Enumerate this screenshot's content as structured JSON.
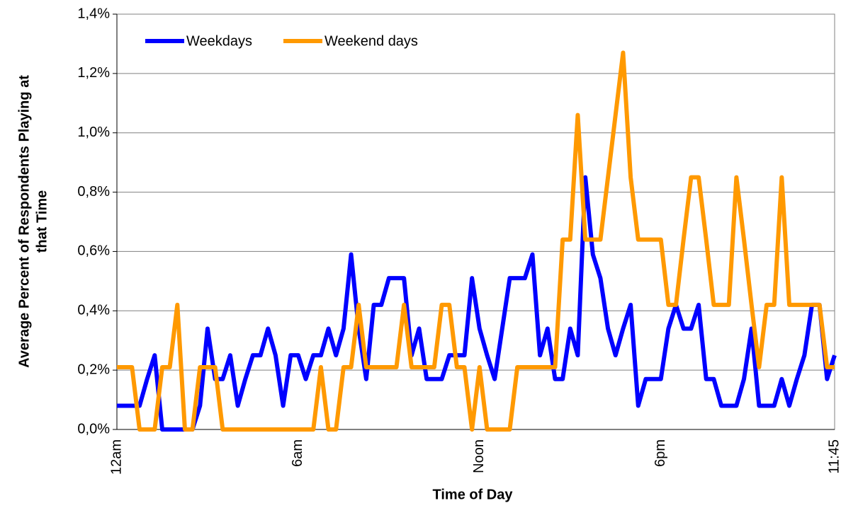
{
  "chart_data": {
    "type": "line",
    "xlabel": "Time of Day",
    "ylabel": [
      "Average Percent of Respondents Playing at",
      "that Time"
    ],
    "categories": [
      "12am",
      null,
      null,
      null,
      null,
      null,
      null,
      null,
      null,
      null,
      null,
      null,
      null,
      null,
      null,
      null,
      null,
      null,
      null,
      null,
      null,
      null,
      null,
      null,
      "6am",
      null,
      null,
      null,
      null,
      null,
      null,
      null,
      null,
      null,
      null,
      null,
      null,
      null,
      null,
      null,
      null,
      null,
      null,
      null,
      null,
      null,
      null,
      null,
      "Noon",
      null,
      null,
      null,
      null,
      null,
      null,
      null,
      null,
      null,
      null,
      null,
      null,
      null,
      null,
      null,
      null,
      null,
      null,
      null,
      null,
      null,
      null,
      null,
      "6pm",
      null,
      null,
      null,
      null,
      null,
      null,
      null,
      null,
      null,
      null,
      null,
      null,
      null,
      null,
      null,
      null,
      null,
      null,
      null,
      null,
      null,
      null,
      "11:45"
    ],
    "series": [
      {
        "name": "Weekdays",
        "color": "#0000ff",
        "values": [
          0.08,
          0.08,
          0.08,
          0.08,
          0.17,
          0.25,
          0,
          0,
          0,
          0,
          0,
          0.08,
          0.34,
          0.17,
          0.17,
          0.25,
          0.08,
          0.17,
          0.25,
          0.25,
          0.34,
          0.25,
          0.08,
          0.25,
          0.25,
          0.17,
          0.25,
          0.25,
          0.34,
          0.25,
          0.34,
          0.59,
          0.34,
          0.17,
          0.42,
          0.42,
          0.51,
          0.51,
          0.51,
          0.25,
          0.34,
          0.17,
          0.17,
          0.17,
          0.25,
          0.25,
          0.25,
          0.51,
          0.34,
          0.25,
          0.17,
          0.34,
          0.51,
          0.51,
          0.51,
          0.59,
          0.25,
          0.34,
          0.17,
          0.17,
          0.34,
          0.25,
          0.85,
          0.59,
          0.51,
          0.34,
          0.25,
          0.34,
          0.42,
          0.08,
          0.17,
          0.17,
          0.17,
          0.34,
          0.42,
          0.34,
          0.34,
          0.42,
          0.17,
          0.17,
          0.08,
          0.08,
          0.08,
          0.17,
          0.34,
          0.08,
          0.08,
          0.08,
          0.17,
          0.08,
          0.17,
          0.25,
          0.42,
          0.42,
          0.17,
          0.25
        ]
      },
      {
        "name": "Weekend days",
        "color": "#ff9900",
        "values": [
          0.21,
          0.21,
          0.21,
          0,
          0,
          0,
          0.21,
          0.21,
          0.42,
          0,
          0,
          0.21,
          0.21,
          0.21,
          0,
          0,
          0,
          0,
          0,
          0,
          0,
          0,
          0,
          0,
          0,
          0,
          0,
          0.21,
          0,
          0,
          0.21,
          0.21,
          0.42,
          0.21,
          0.21,
          0.21,
          0.21,
          0.21,
          0.42,
          0.21,
          0.21,
          0.21,
          0.21,
          0.42,
          0.42,
          0.21,
          0.21,
          0,
          0.21,
          0,
          0,
          0,
          0,
          0.21,
          0.21,
          0.21,
          0.21,
          0.21,
          0.21,
          0.64,
          0.64,
          1.06,
          0.64,
          0.64,
          0.64,
          0.85,
          1.06,
          1.27,
          0.85,
          0.64,
          0.64,
          0.64,
          0.64,
          0.42,
          0.42,
          0.64,
          0.85,
          0.85,
          0.64,
          0.42,
          0.42,
          0.42,
          0.85,
          0.64,
          0.42,
          0.21,
          0.42,
          0.42,
          0.85,
          0.42,
          0.42,
          0.42,
          0.42,
          0.42,
          0.21,
          0.21
        ]
      }
    ],
    "ylim": [
      0,
      1.4
    ],
    "yticks": [
      {
        "value": 0,
        "label": "0,0%"
      },
      {
        "value": 0.2,
        "label": "0,2%"
      },
      {
        "value": 0.4,
        "label": "0,4%"
      },
      {
        "value": 0.6,
        "label": "0,6%"
      },
      {
        "value": 0.8,
        "label": "0,8%"
      },
      {
        "value": 1.0,
        "label": "1,0%"
      },
      {
        "value": 1.2,
        "label": "1,2%"
      },
      {
        "value": 1.4,
        "label": "1,4%"
      }
    ],
    "grid": true,
    "legend": "top-left"
  }
}
